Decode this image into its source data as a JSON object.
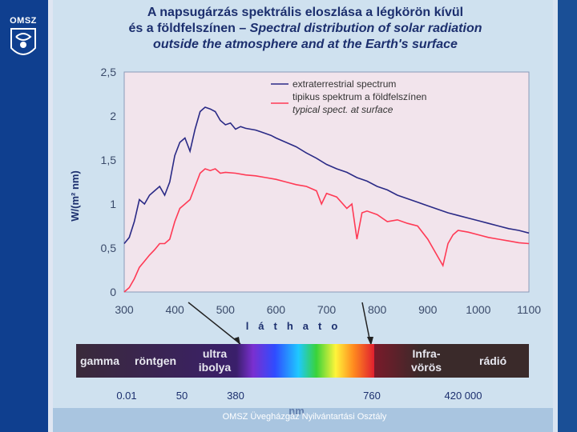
{
  "logo": {
    "text": "OMSZ"
  },
  "title": {
    "line1": "A napsugárzás spektrális eloszlása a légkörön kívül",
    "line2_hu": "és a földfelszínen – ",
    "line2_en": "Spectral distribution of solar radiation",
    "line3": "outside the atmosphere and at the Earth's surface"
  },
  "footer": "OMSZ Üvegházgáz Nyilvántartási Osztály",
  "colors": {
    "extraterrestrial": "#2a2a86",
    "surface": "#ff3a55",
    "plot_bg": "#f2e4ec"
  },
  "chart_data": {
    "type": "line",
    "ylabel": "W/(m² nm)",
    "xlim": [
      300,
      1100
    ],
    "ylim": [
      0,
      2.5
    ],
    "x_ticks": [
      300,
      400,
      500,
      600,
      700,
      800,
      900,
      1000,
      1100
    ],
    "y_ticks": [
      0,
      0.5,
      1,
      1.5,
      2,
      2.5
    ],
    "y_tick_labels": [
      "0",
      "0,5",
      "1",
      "1,5",
      "2",
      "2,5"
    ],
    "legend": {
      "position": "top-right",
      "entries": [
        "extraterrestrial spectrum",
        "tipikus spektrum a földfelszínen",
        "typical spect. at surface"
      ]
    },
    "series": [
      {
        "name": "extraterrestrial spectrum",
        "x": [
          300,
          310,
          320,
          330,
          340,
          350,
          360,
          370,
          380,
          390,
          400,
          410,
          420,
          430,
          440,
          450,
          460,
          470,
          480,
          490,
          500,
          510,
          520,
          530,
          540,
          550,
          560,
          570,
          580,
          590,
          600,
          620,
          640,
          660,
          680,
          700,
          720,
          740,
          760,
          780,
          800,
          820,
          840,
          860,
          880,
          900,
          920,
          940,
          960,
          980,
          1000,
          1020,
          1040,
          1060,
          1080,
          1100
        ],
        "y": [
          0.55,
          0.62,
          0.8,
          1.05,
          1.0,
          1.1,
          1.15,
          1.2,
          1.1,
          1.25,
          1.55,
          1.7,
          1.75,
          1.6,
          1.85,
          2.05,
          2.1,
          2.08,
          2.05,
          1.95,
          1.9,
          1.92,
          1.85,
          1.88,
          1.86,
          1.85,
          1.84,
          1.82,
          1.8,
          1.78,
          1.75,
          1.7,
          1.65,
          1.58,
          1.52,
          1.45,
          1.4,
          1.36,
          1.3,
          1.26,
          1.2,
          1.16,
          1.1,
          1.06,
          1.02,
          0.98,
          0.94,
          0.9,
          0.87,
          0.84,
          0.81,
          0.78,
          0.75,
          0.72,
          0.7,
          0.67
        ]
      },
      {
        "name": "tipikus spektrum a földfelszínen / typical spect. at surface",
        "x": [
          300,
          310,
          320,
          330,
          340,
          350,
          360,
          370,
          380,
          390,
          400,
          410,
          420,
          430,
          440,
          450,
          460,
          470,
          480,
          490,
          500,
          520,
          540,
          560,
          580,
          600,
          620,
          640,
          660,
          680,
          690,
          700,
          720,
          740,
          750,
          760,
          770,
          780,
          800,
          820,
          840,
          860,
          880,
          900,
          920,
          930,
          940,
          950,
          960,
          980,
          1000,
          1020,
          1040,
          1060,
          1080,
          1100
        ],
        "y": [
          0.0,
          0.05,
          0.15,
          0.28,
          0.35,
          0.42,
          0.48,
          0.55,
          0.55,
          0.6,
          0.8,
          0.95,
          1.0,
          1.05,
          1.2,
          1.35,
          1.4,
          1.38,
          1.4,
          1.35,
          1.36,
          1.35,
          1.33,
          1.32,
          1.3,
          1.28,
          1.25,
          1.22,
          1.2,
          1.15,
          1.0,
          1.12,
          1.08,
          0.95,
          1.0,
          0.6,
          0.9,
          0.92,
          0.88,
          0.8,
          0.82,
          0.78,
          0.75,
          0.6,
          0.4,
          0.3,
          0.55,
          0.65,
          0.7,
          0.68,
          0.65,
          0.62,
          0.6,
          0.58,
          0.56,
          0.55
        ]
      }
    ]
  },
  "spectrum_band": {
    "axis_label": "láthato",
    "regions": [
      "gamma",
      "röntgen",
      "ultra ibolya",
      "infra-vörös",
      "rádió"
    ],
    "regions_lines": {
      "uv": [
        "ultra",
        "ibolya"
      ],
      "ir": [
        "Infra-",
        "vörös"
      ]
    },
    "scale_values": [
      "0.01",
      "50",
      "380",
      "760",
      "420 000"
    ],
    "unit": "nm"
  }
}
